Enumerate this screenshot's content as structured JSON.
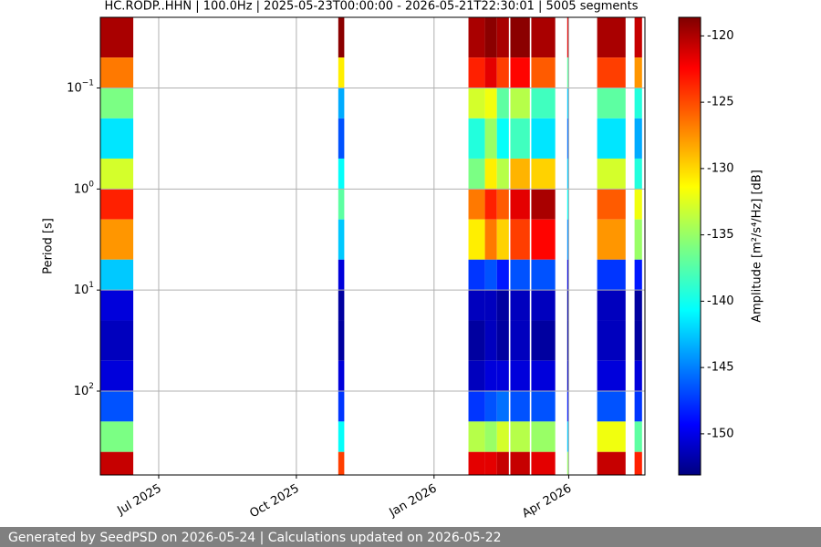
{
  "chart_data": {
    "type": "spectrogram",
    "title": "HC.RODP..HHN | 100.0Hz | 2025-05-23T00:00:00 - 2026-05-21T22:30:01 | 5005 segments",
    "y_label": "Period [s]",
    "colorbar_label": "Amplitude [m²/s⁴/Hz] [dB]",
    "xlim": [
      "2025-05-23T00:00:00",
      "2026-05-21T22:30:01"
    ],
    "xticks": [
      {
        "value": "2025-07",
        "label": "Jul 2025"
      },
      {
        "value": "2025-10",
        "label": "Oct 2025"
      },
      {
        "value": "2026-01",
        "label": "Jan 2026"
      },
      {
        "value": "2026-04",
        "label": "Apr 2026"
      }
    ],
    "ylim": [
      0.02,
      676
    ],
    "y_log": true,
    "y_inverted": true,
    "yticks": [
      {
        "value": 0.1,
        "label": "10",
        "exponent": "−1"
      },
      {
        "value": 1,
        "label": "10",
        "exponent": "0"
      },
      {
        "value": 10,
        "label": "10",
        "exponent": "1"
      },
      {
        "value": 100,
        "label": "10",
        "exponent": "2"
      }
    ],
    "grid": true,
    "colormap": "jet",
    "clim": [
      -153.1,
      -118.6
    ],
    "cticks": [
      -120,
      -125,
      -130,
      -135,
      -140,
      -145,
      -150
    ],
    "period_bins": [
      0.02,
      0.05,
      0.1,
      0.2,
      0.5,
      1,
      2,
      5,
      10,
      20,
      50,
      100,
      200,
      400,
      676
    ],
    "segments": [
      {
        "start": "2025-05-23",
        "end": "2025-06-14",
        "values": [
          -120,
          -127,
          -136,
          -141,
          -133,
          -124,
          -128,
          -142,
          -150,
          -151,
          -150,
          -146,
          -136,
          -121
        ]
      },
      {
        "start": "2025-10-29",
        "end": "2025-11-02",
        "values": [
          -119,
          -131,
          -143,
          -146,
          -140,
          -137,
          -142,
          -150,
          -152,
          -152,
          -150,
          -147,
          -140,
          -125
        ]
      },
      {
        "start": "2026-01-24",
        "end": "2026-02-04",
        "values": [
          -120,
          -124,
          -133,
          -139,
          -136,
          -127,
          -131,
          -147,
          -151,
          -152,
          -151,
          -147,
          -134,
          -122
        ]
      },
      {
        "start": "2026-02-04",
        "end": "2026-02-12",
        "values": [
          -119,
          -122,
          -132,
          -135,
          -131,
          -124,
          -127,
          -146,
          -151,
          -151,
          -150,
          -146,
          -135,
          -122
        ]
      },
      {
        "start": "2026-02-12",
        "end": "2026-02-20",
        "values": [
          -120,
          -125,
          -137,
          -140,
          -134,
          -126,
          -130,
          -148,
          -152,
          -152,
          -150,
          -145,
          -133,
          -121
        ]
      },
      {
        "start": "2026-02-21",
        "end": "2026-03-06",
        "values": [
          -119,
          -123,
          -134,
          -138,
          -129,
          -122,
          -125,
          -146,
          -151,
          -151,
          -150,
          -146,
          -134,
          -121
        ]
      },
      {
        "start": "2026-03-07",
        "end": "2026-03-23",
        "values": [
          -120,
          -126,
          -138,
          -141,
          -130,
          -120,
          -123,
          -146,
          -151,
          -152,
          -150,
          -146,
          -135,
          -122
        ]
      },
      {
        "start": "2026-03-31",
        "end": "2026-04-01",
        "values": [
          -122,
          -137,
          -142,
          -145,
          -142,
          -140,
          -144,
          -150,
          -152,
          -152,
          -151,
          -148,
          -142,
          -135
        ]
      },
      {
        "start": "2026-04-20",
        "end": "2026-05-09",
        "values": [
          -120,
          -125,
          -137,
          -141,
          -133,
          -126,
          -128,
          -147,
          -151,
          -151,
          -150,
          -146,
          -132,
          -121
        ]
      },
      {
        "start": "2026-05-15",
        "end": "2026-05-20",
        "values": [
          -121,
          -128,
          -139,
          -143,
          -139,
          -132,
          -135,
          -148,
          -152,
          -152,
          -150,
          -147,
          -137,
          -124
        ]
      }
    ]
  },
  "footer": {
    "text": "Generated by SeedPSD on 2026-05-24 | Calculations updated on 2026-05-22"
  }
}
